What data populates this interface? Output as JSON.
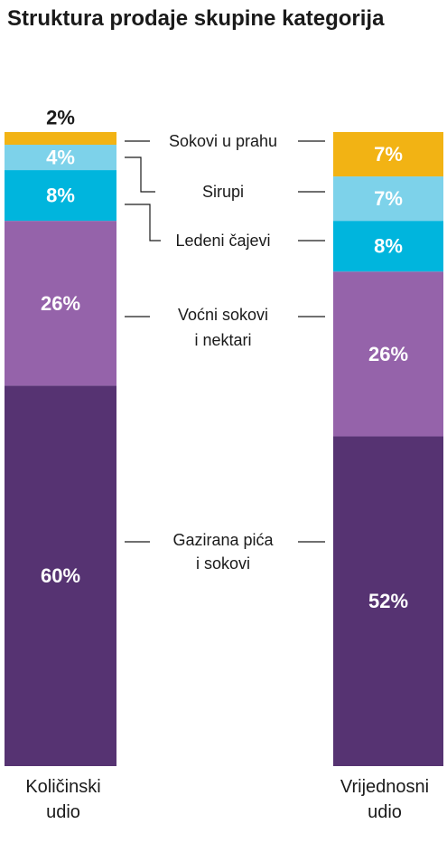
{
  "title": "Struktura prodaje skupine kategorija",
  "chart_data": {
    "type": "bar",
    "stacked": true,
    "percent": true,
    "categories": [
      {
        "line1": "Količinski",
        "line2": "udio"
      },
      {
        "line1": "Vrijednosni",
        "line2": "udio"
      }
    ],
    "series": [
      {
        "name": "Gazirana pića i sokovi",
        "label_lines": [
          "Gazirana pića",
          "i sokovi"
        ],
        "color": "#563372",
        "values": [
          60,
          52
        ]
      },
      {
        "name": "Voćni sokovi i nektari",
        "label_lines": [
          "Voćni sokovi",
          "i nektari"
        ],
        "color": "#9563aa",
        "values": [
          26,
          26
        ]
      },
      {
        "name": "Ledeni čajevi",
        "label_lines": [
          "Ledeni čajevi"
        ],
        "color": "#00b5dd",
        "values": [
          8,
          8
        ]
      },
      {
        "name": "Sirupi",
        "label_lines": [
          "Sirupi"
        ],
        "color": "#7dd2ea",
        "values": [
          4,
          7
        ]
      },
      {
        "name": "Sokovi u prahu",
        "label_lines": [
          "Sokovi u prahu"
        ],
        "color": "#f2b314",
        "values": [
          2,
          7
        ]
      }
    ],
    "value_labels": [
      [
        "60%",
        "26%",
        "8%",
        "4%",
        "2%"
      ],
      [
        "52%",
        "26%",
        "8%",
        "7%",
        "7%"
      ]
    ],
    "ylim": [
      0,
      100
    ],
    "grid": false,
    "legend": "between bars"
  }
}
